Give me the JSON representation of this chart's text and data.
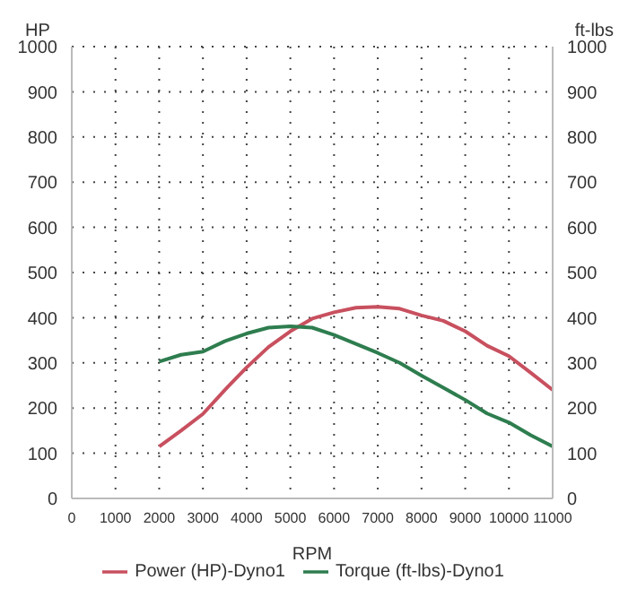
{
  "chart_data": {
    "type": "line",
    "xlabel": "RPM",
    "ylabel": "HP",
    "y2label": "ft-lbs",
    "x": [
      2000,
      2500,
      3000,
      3500,
      4000,
      4500,
      5000,
      5500,
      6000,
      6500,
      7000,
      7500,
      8000,
      8500,
      9000,
      9500,
      10000,
      10500,
      11000
    ],
    "series": [
      {
        "name": "Power (HP)-Dyno1",
        "color": "#c8505f",
        "values": [
          115,
          150,
          187,
          240,
          290,
          335,
          370,
          398,
          412,
          422,
          424,
          420,
          405,
          393,
          370,
          338,
          315,
          278,
          240
        ]
      },
      {
        "name": "Torque (ft-lbs)-Dyno1",
        "color": "#2e7d4f",
        "axis": "y2",
        "values": [
          303,
          318,
          325,
          348,
          365,
          378,
          381,
          378,
          362,
          342,
          322,
          300,
          272,
          245,
          218,
          188,
          168,
          140,
          115
        ]
      }
    ],
    "xlim": [
      0,
      11000
    ],
    "xticks": [
      0,
      1000,
      2000,
      3000,
      4000,
      5000,
      6000,
      7000,
      8000,
      9000,
      10000,
      11000
    ],
    "ylim": [
      0,
      1000
    ],
    "yticks": [
      0,
      100,
      200,
      300,
      400,
      500,
      600,
      700,
      800,
      900,
      1000
    ],
    "y2lim": [
      0,
      1000
    ],
    "y2ticks": [
      0,
      100,
      200,
      300,
      400,
      500,
      600,
      700,
      800,
      900,
      1000
    ],
    "grid": true,
    "legend": "bottom",
    "marker": "none",
    "line_style": "solid"
  }
}
